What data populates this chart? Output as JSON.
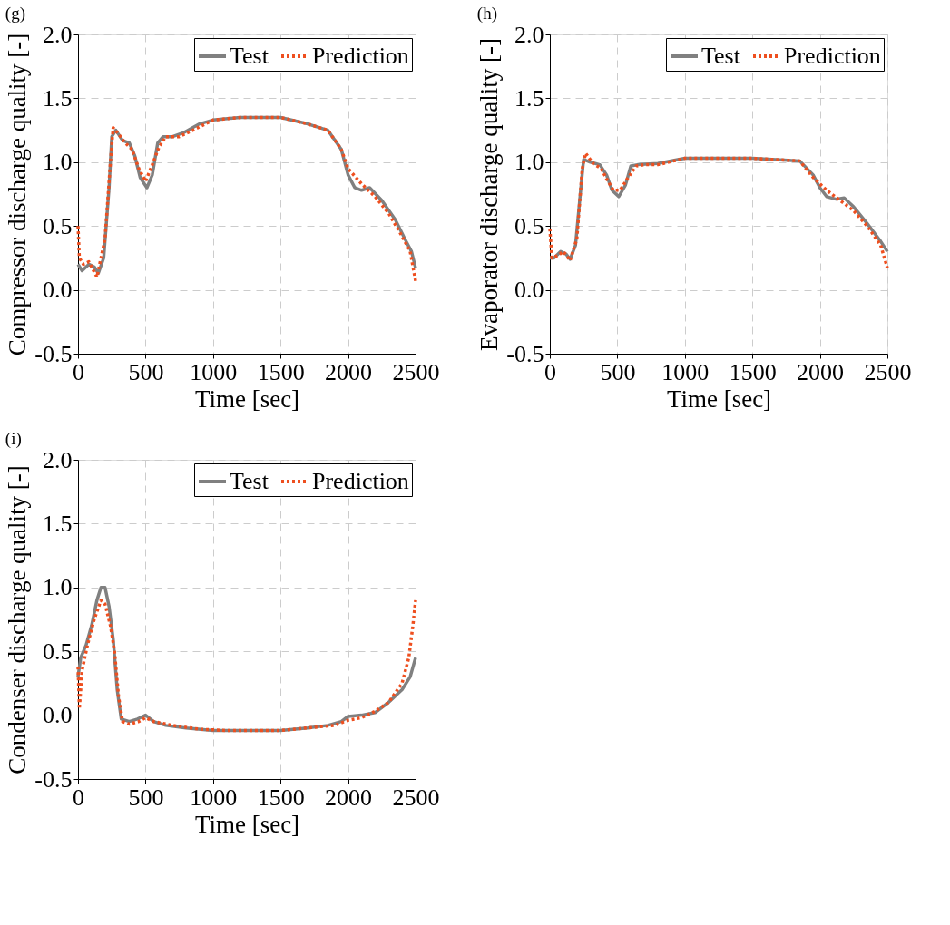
{
  "chart_data": [
    {
      "type": "line",
      "title": "(g)",
      "xlabel": "Time [sec]",
      "ylabel": "Compressor discharge quality [-]",
      "xlim": [
        0,
        2500
      ],
      "xticks": [
        0,
        500,
        1000,
        1500,
        2000,
        2500
      ],
      "ylim": [
        -0.5,
        2.0
      ],
      "yticks": [
        -0.5,
        {
          "value": 0,
          "label": "0.0"
        },
        0.5,
        {
          "value": 1,
          "label": "1.0"
        },
        1.5,
        {
          "value": 2,
          "label": "2.0"
        }
      ],
      "grid": true,
      "legend": "top right",
      "series": [
        {
          "name": "Test",
          "color": "#808080",
          "line_style": "solid",
          "x": [
            0,
            30,
            80,
            120,
            150,
            190,
            230,
            250,
            280,
            330,
            380,
            420,
            460,
            510,
            550,
            590,
            630,
            700,
            780,
            900,
            1000,
            1200,
            1500,
            1700,
            1850,
            1950,
            2000,
            2050,
            2100,
            2160,
            2250,
            2350,
            2420,
            2470,
            2500
          ],
          "values": [
            0.2,
            0.15,
            0.2,
            0.18,
            0.13,
            0.25,
            0.8,
            1.2,
            1.25,
            1.17,
            1.15,
            1.05,
            0.88,
            0.8,
            0.9,
            1.15,
            1.2,
            1.2,
            1.23,
            1.3,
            1.33,
            1.35,
            1.35,
            1.3,
            1.25,
            1.1,
            0.9,
            0.8,
            0.78,
            0.8,
            0.7,
            0.55,
            0.4,
            0.3,
            0.17
          ]
        },
        {
          "name": "Prediction",
          "color": "#ee4f1f",
          "line_style": "dotted",
          "x": [
            0,
            10,
            40,
            80,
            140,
            200,
            240,
            260,
            300,
            350,
            400,
            450,
            500,
            550,
            600,
            650,
            750,
            850,
            1000,
            1200,
            1500,
            1700,
            1850,
            1950,
            2000,
            2100,
            2200,
            2300,
            2400,
            2460,
            2500
          ],
          "values": [
            0.5,
            0.25,
            0.2,
            0.22,
            0.1,
            0.4,
            1.0,
            1.27,
            1.22,
            1.15,
            1.1,
            0.95,
            0.85,
            0.98,
            1.12,
            1.2,
            1.2,
            1.25,
            1.33,
            1.35,
            1.35,
            1.3,
            1.25,
            1.1,
            0.95,
            0.83,
            0.73,
            0.6,
            0.42,
            0.3,
            0.07
          ]
        }
      ]
    },
    {
      "type": "line",
      "title": "(h)",
      "xlabel": "Time [sec]",
      "ylabel": "Evaporator discharge quality [-]",
      "xlim": [
        0,
        2500
      ],
      "xticks": [
        0,
        500,
        1000,
        1500,
        2000,
        2500
      ],
      "ylim": [
        -0.5,
        2.0
      ],
      "yticks": [
        -0.5,
        {
          "value": 0,
          "label": "0.0"
        },
        0.5,
        {
          "value": 1,
          "label": "1.0"
        },
        1.5,
        {
          "value": 2,
          "label": "2.0"
        }
      ],
      "grid": true,
      "legend": "top right",
      "series": [
        {
          "name": "Test",
          "color": "#808080",
          "line_style": "solid",
          "x": [
            0,
            30,
            80,
            120,
            150,
            190,
            230,
            250,
            300,
            370,
            420,
            460,
            510,
            560,
            600,
            650,
            800,
            1000,
            1500,
            1850,
            1950,
            2000,
            2050,
            2120,
            2180,
            2250,
            2350,
            2450,
            2500
          ],
          "values": [
            0.25,
            0.25,
            0.3,
            0.28,
            0.24,
            0.35,
            0.8,
            1.02,
            1.0,
            0.98,
            0.9,
            0.78,
            0.73,
            0.82,
            0.97,
            0.98,
            0.99,
            1.03,
            1.03,
            1.01,
            0.9,
            0.8,
            0.73,
            0.71,
            0.72,
            0.65,
            0.52,
            0.38,
            0.3
          ]
        },
        {
          "name": "Prediction",
          "color": "#ee4f1f",
          "line_style": "dotted",
          "x": [
            0,
            15,
            60,
            100,
            150,
            200,
            240,
            265,
            320,
            380,
            420,
            470,
            520,
            580,
            640,
            700,
            800,
            1000,
            1500,
            1850,
            1950,
            2050,
            2150,
            2250,
            2350,
            2450,
            2500
          ],
          "values": [
            0.48,
            0.25,
            0.27,
            0.3,
            0.23,
            0.4,
            0.95,
            1.07,
            0.99,
            0.95,
            0.87,
            0.78,
            0.78,
            0.88,
            0.97,
            0.98,
            0.98,
            1.03,
            1.03,
            1.01,
            0.88,
            0.78,
            0.7,
            0.62,
            0.5,
            0.35,
            0.17
          ]
        }
      ]
    },
    {
      "type": "line",
      "title": "(i)",
      "xlabel": "Time [sec]",
      "ylabel": "Condenser discharge quality [-]",
      "xlim": [
        0,
        2500
      ],
      "xticks": [
        0,
        500,
        1000,
        1500,
        2000,
        2500
      ],
      "ylim": [
        -0.5,
        2.0
      ],
      "yticks": [
        -0.5,
        {
          "value": 0,
          "label": "0.0"
        },
        0.5,
        {
          "value": 1,
          "label": "1.0"
        },
        1.5,
        {
          "value": 2,
          "label": "2.0"
        }
      ],
      "grid": true,
      "legend": "top right",
      "series": [
        {
          "name": "Test",
          "color": "#808080",
          "line_style": "solid",
          "x": [
            0,
            20,
            60,
            100,
            140,
            170,
            200,
            230,
            260,
            290,
            320,
            380,
            440,
            500,
            560,
            650,
            800,
            1000,
            1500,
            1700,
            1850,
            1950,
            2000,
            2100,
            2200,
            2300,
            2400,
            2460,
            2500
          ],
          "values": [
            0.3,
            0.45,
            0.55,
            0.7,
            0.9,
            1.0,
            1.0,
            0.85,
            0.6,
            0.2,
            -0.03,
            -0.05,
            -0.03,
            0.0,
            -0.05,
            -0.08,
            -0.1,
            -0.12,
            -0.12,
            -0.1,
            -0.08,
            -0.05,
            -0.01,
            0.0,
            0.02,
            0.1,
            0.2,
            0.3,
            0.45
          ]
        },
        {
          "name": "Prediction",
          "color": "#ee4f1f",
          "line_style": "dotted",
          "x": [
            0,
            10,
            30,
            70,
            120,
            170,
            200,
            240,
            270,
            300,
            330,
            380,
            450,
            500,
            560,
            700,
            900,
            1100,
            1500,
            1700,
            1900,
            2000,
            2100,
            2200,
            2300,
            2400,
            2450,
            2480,
            2500
          ],
          "values": [
            0.38,
            0.05,
            0.35,
            0.55,
            0.75,
            0.9,
            0.87,
            0.7,
            0.5,
            0.15,
            -0.05,
            -0.07,
            -0.05,
            -0.02,
            -0.05,
            -0.08,
            -0.11,
            -0.12,
            -0.12,
            -0.1,
            -0.08,
            -0.04,
            -0.02,
            0.03,
            0.1,
            0.25,
            0.45,
            0.7,
            0.9
          ]
        }
      ]
    }
  ]
}
